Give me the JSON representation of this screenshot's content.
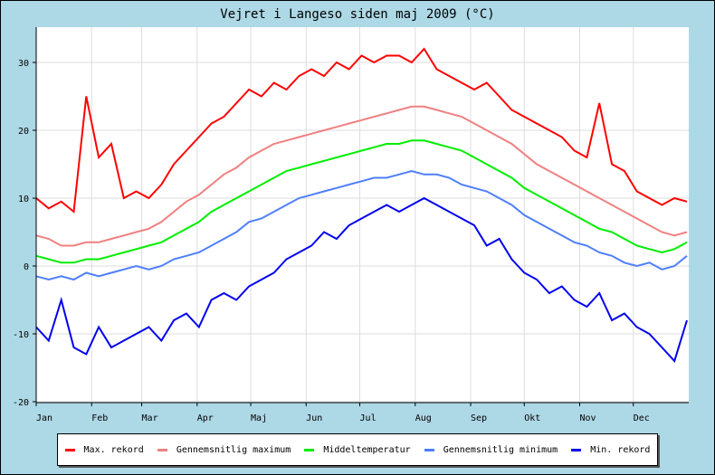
{
  "chart_data": {
    "type": "line",
    "title": "Vejret i Langeso siden maj 2009 (°C)",
    "xlabel": "",
    "ylabel": "",
    "x_unit": "day of year (weekly samples)",
    "x": [
      0,
      7,
      14,
      21,
      28,
      35,
      42,
      49,
      56,
      63,
      70,
      77,
      84,
      91,
      98,
      105,
      112,
      119,
      126,
      133,
      140,
      147,
      154,
      161,
      168,
      175,
      182,
      189,
      196,
      203,
      210,
      217,
      224,
      231,
      238,
      245,
      252,
      259,
      266,
      273,
      280,
      287,
      294,
      301,
      308,
      315,
      322,
      329,
      336,
      343,
      350,
      357,
      364
    ],
    "xlim": [
      0,
      365
    ],
    "ylim": [
      -20,
      35
    ],
    "y_ticks": [
      "30",
      "20",
      "10",
      "0",
      "-10",
      "-20"
    ],
    "y_tick_values": [
      30,
      20,
      10,
      0,
      -10,
      -20
    ],
    "x_ticks": [
      "Jan",
      "Feb",
      "Mar",
      "Apr",
      "Maj",
      "Jun",
      "Jul",
      "Aug",
      "Sep",
      "Okt",
      "Nov",
      "Dec"
    ],
    "x_tick_days": [
      0,
      31,
      59,
      90,
      120,
      151,
      181,
      212,
      243,
      273,
      304,
      334
    ],
    "grid": true,
    "legend_placement": "bottom",
    "series": [
      {
        "name": "Max. rekord",
        "color": "#ff0000",
        "values": [
          10,
          8.5,
          9.5,
          8,
          25,
          16,
          18,
          10,
          11,
          10,
          12,
          15,
          17,
          19,
          21,
          22,
          24,
          26,
          25,
          27,
          26,
          28,
          29,
          28,
          30,
          29,
          31,
          30,
          31,
          31,
          30,
          32,
          29,
          28,
          27,
          26,
          27,
          25,
          23,
          22,
          21,
          20,
          19,
          17,
          16,
          24,
          15,
          14,
          11,
          10,
          9,
          10,
          9.5
        ]
      },
      {
        "name": "Gennemsnitlig maximum",
        "color": "#f08080",
        "values": [
          4.5,
          4,
          3,
          3,
          3.5,
          3.5,
          4,
          4.5,
          5,
          5.5,
          6.5,
          8,
          9.5,
          10.5,
          12,
          13.5,
          14.5,
          16,
          17,
          18,
          18.5,
          19,
          19.5,
          20,
          20.5,
          21,
          21.5,
          22,
          22.5,
          23,
          23.5,
          23.5,
          23,
          22.5,
          22,
          21,
          20,
          19,
          18,
          16.5,
          15,
          14,
          13,
          12,
          11,
          10,
          9,
          8,
          7,
          6,
          5,
          4.5,
          5
        ]
      },
      {
        "name": "Middeltemperatur",
        "color": "#00ee00",
        "values": [
          1.5,
          1,
          0.5,
          0.5,
          1,
          1,
          1.5,
          2,
          2.5,
          3,
          3.5,
          4.5,
          5.5,
          6.5,
          8,
          9,
          10,
          11,
          12,
          13,
          14,
          14.5,
          15,
          15.5,
          16,
          16.5,
          17,
          17.5,
          18,
          18,
          18.5,
          18.5,
          18,
          17.5,
          17,
          16,
          15,
          14,
          13,
          11.5,
          10.5,
          9.5,
          8.5,
          7.5,
          6.5,
          5.5,
          5,
          4,
          3,
          2.5,
          2,
          2.5,
          3.5
        ]
      },
      {
        "name": "Gennemsnitlig minimum",
        "color": "#4f7fff",
        "values": [
          -1.5,
          -2,
          -1.5,
          -2,
          -1,
          -1.5,
          -1,
          -0.5,
          0,
          -0.5,
          0,
          1,
          1.5,
          2,
          3,
          4,
          5,
          6.5,
          7,
          8,
          9,
          10,
          10.5,
          11,
          11.5,
          12,
          12.5,
          13,
          13,
          13.5,
          14,
          13.5,
          13.5,
          13,
          12,
          11.5,
          11,
          10,
          9,
          7.5,
          6.5,
          5.5,
          4.5,
          3.5,
          3,
          2,
          1.5,
          0.5,
          0,
          0.5,
          -0.5,
          0,
          1.5
        ]
      },
      {
        "name": "Min. rekord",
        "color": "#0000ee",
        "values": [
          -9,
          -11,
          -5,
          -12,
          -13,
          -9,
          -12,
          -11,
          -10,
          -9,
          -11,
          -8,
          -7,
          -9,
          -5,
          -4,
          -5,
          -3,
          -2,
          -1,
          1,
          2,
          3,
          5,
          4,
          6,
          7,
          8,
          9,
          8,
          9,
          10,
          9,
          8,
          7,
          6,
          3,
          4,
          1,
          -1,
          -2,
          -4,
          -3,
          -5,
          -6,
          -4,
          -8,
          -7,
          -9,
          -10,
          -12,
          -14,
          -8
        ]
      }
    ]
  }
}
